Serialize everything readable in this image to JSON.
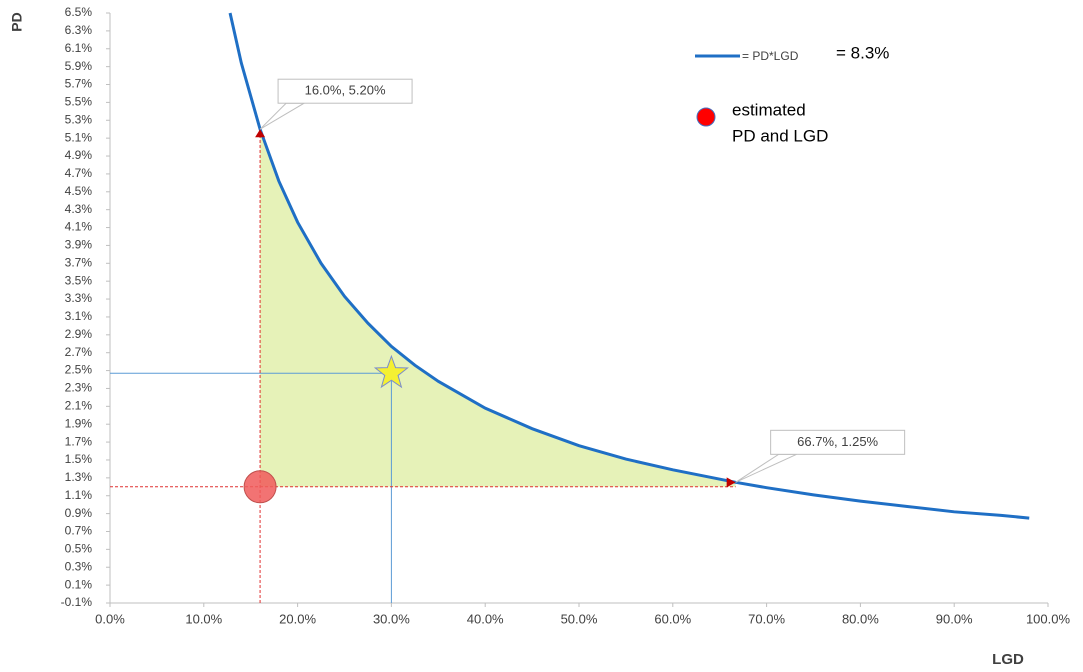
{
  "chart_data": {
    "type": "line",
    "x_label": "LGD",
    "y_label": "PD",
    "xlim": [
      0,
      100
    ],
    "ylim": [
      -0.1,
      6.5
    ],
    "xticks": [
      {
        "value": 0,
        "label": "0.0%"
      },
      {
        "value": 10,
        "label": "10.0%"
      },
      {
        "value": 20,
        "label": "20.0%"
      },
      {
        "value": 30,
        "label": "30.0%"
      },
      {
        "value": 40,
        "label": "40.0%"
      },
      {
        "value": 50,
        "label": "50.0%"
      },
      {
        "value": 60,
        "label": "60.0%"
      },
      {
        "value": 70,
        "label": "70.0%"
      },
      {
        "value": 80,
        "label": "80.0%"
      },
      {
        "value": 90,
        "label": "90.0%"
      },
      {
        "value": 100,
        "label": "100.0%"
      }
    ],
    "yticks": [
      {
        "value": -0.1,
        "label": "-0.1%"
      },
      {
        "value": 0.1,
        "label": "0.1%"
      },
      {
        "value": 0.3,
        "label": "0.3%"
      },
      {
        "value": 0.5,
        "label": "0.5%"
      },
      {
        "value": 0.7,
        "label": "0.7%"
      },
      {
        "value": 0.9,
        "label": "0.9%"
      },
      {
        "value": 1.1,
        "label": "1.1%"
      },
      {
        "value": 1.3,
        "label": "1.3%"
      },
      {
        "value": 1.5,
        "label": "1.5%"
      },
      {
        "value": 1.7,
        "label": "1.7%"
      },
      {
        "value": 1.9,
        "label": "1.9%"
      },
      {
        "value": 2.1,
        "label": "2.1%"
      },
      {
        "value": 2.3,
        "label": "2.3%"
      },
      {
        "value": 2.5,
        "label": "2.5%"
      },
      {
        "value": 2.7,
        "label": "2.7%"
      },
      {
        "value": 2.9,
        "label": "2.9%"
      },
      {
        "value": 3.1,
        "label": "3.1%"
      },
      {
        "value": 3.3,
        "label": "3.3%"
      },
      {
        "value": 3.5,
        "label": "3.5%"
      },
      {
        "value": 3.7,
        "label": "3.7%"
      },
      {
        "value": 3.9,
        "label": "3.9%"
      },
      {
        "value": 4.1,
        "label": "4.1%"
      },
      {
        "value": 4.3,
        "label": "4.3%"
      },
      {
        "value": 4.5,
        "label": "4.5%"
      },
      {
        "value": 4.7,
        "label": "4.7%"
      },
      {
        "value": 4.9,
        "label": "4.9%"
      },
      {
        "value": 5.1,
        "label": "5.1%"
      },
      {
        "value": 5.3,
        "label": "5.3%"
      },
      {
        "value": 5.5,
        "label": "5.5%"
      },
      {
        "value": 5.7,
        "label": "5.7%"
      },
      {
        "value": 5.9,
        "label": "5.9%"
      },
      {
        "value": 6.1,
        "label": "6.1%"
      },
      {
        "value": 6.3,
        "label": "6.3%"
      },
      {
        "value": 6.5,
        "label": "6.5%"
      }
    ],
    "series": [
      {
        "name": "= PD*LGD",
        "color": "#1f6fc5",
        "x": [
          12.8,
          14,
          16,
          18,
          20,
          22.5,
          25,
          27.5,
          30,
          32.5,
          35,
          40,
          45,
          50,
          55,
          60,
          66.7,
          70,
          75,
          80,
          85,
          90,
          95,
          98
        ],
        "values": [
          6.5,
          5.94,
          5.2,
          4.62,
          4.16,
          3.7,
          3.33,
          3.03,
          2.77,
          2.56,
          2.38,
          2.08,
          1.85,
          1.66,
          1.51,
          1.39,
          1.25,
          1.19,
          1.11,
          1.04,
          0.98,
          0.92,
          0.88,
          0.85
        ]
      }
    ],
    "legend_value": "= 8.3%",
    "estimate": {
      "name_lines": [
        "estimated",
        "PD and LGD"
      ],
      "x": 16,
      "y": 1.2,
      "color": "#f05a5a"
    },
    "star": {
      "x": 30,
      "y": 2.47,
      "color": "#f5f032"
    },
    "shade_color": "#e6f2b8",
    "annotations": [
      {
        "text": "16.0%, 5.20%",
        "x": 16,
        "y": 5.2
      },
      {
        "text": "66.7%, 1.25%",
        "x": 66.7,
        "y": 1.25
      }
    ]
  }
}
